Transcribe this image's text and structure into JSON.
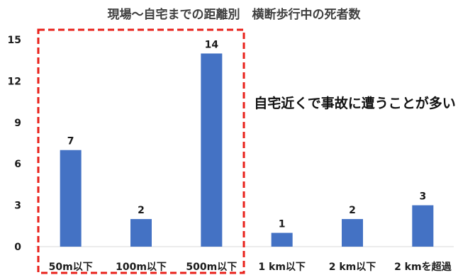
{
  "chart_data": {
    "type": "bar",
    "title": "現場～自宅までの距離別　横断歩行中の死者数",
    "categories": [
      "50m以下",
      "100m以下",
      "500m以下",
      "1 km以下",
      "2 km以下",
      "2 kmを超過"
    ],
    "values": [
      7,
      2,
      14,
      1,
      2,
      3
    ],
    "ylim": [
      0,
      15
    ],
    "yticks": [
      0,
      3,
      6,
      9,
      12,
      15
    ],
    "grid": false,
    "legend": "none",
    "bar_color": "#4472C4",
    "highlight": {
      "categories": [
        "50m以下",
        "100m以下",
        "500m以下"
      ],
      "style": "dashed-box",
      "color": "#E8201A"
    },
    "annotation": "自宅近くで事故に遭うことが多い！"
  }
}
